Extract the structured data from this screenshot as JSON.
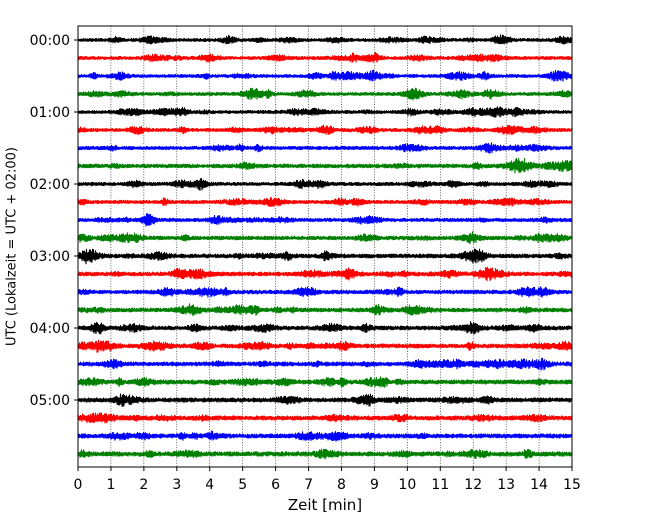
{
  "chart_data": {
    "type": "line",
    "title": "",
    "xlabel": "Zeit  [min]",
    "ylabel": "UTC (Lokalzeit = UTC + 02:00)",
    "xlim": [
      0,
      15
    ],
    "x_ticks": [
      "0",
      "1",
      "2",
      "3",
      "4",
      "5",
      "6",
      "7",
      "8",
      "9",
      "10",
      "11",
      "12",
      "13",
      "14",
      "15"
    ],
    "y_ticks": [
      "00:00",
      "01:00",
      "02:00",
      "03:00",
      "04:00",
      "05:00"
    ],
    "grid": "vertical dotted lines at each minute",
    "trace_interval_minutes": 15,
    "color_cycle": [
      "#000000",
      "#ff0000",
      "#0000ff",
      "#008000"
    ],
    "traces": [
      {
        "start": "00:00",
        "color": "#000000",
        "amplitude": 0.45
      },
      {
        "start": "00:15",
        "color": "#ff0000",
        "amplitude": 0.45
      },
      {
        "start": "00:30",
        "color": "#0000ff",
        "amplitude": 0.45
      },
      {
        "start": "00:45",
        "color": "#008000",
        "amplitude": 0.45
      },
      {
        "start": "01:00",
        "color": "#000000",
        "amplitude": 0.5
      },
      {
        "start": "01:15",
        "color": "#ff0000",
        "amplitude": 0.5
      },
      {
        "start": "01:30",
        "color": "#0000ff",
        "amplitude": 0.55
      },
      {
        "start": "01:45",
        "color": "#008000",
        "amplitude": 0.7
      },
      {
        "start": "02:00",
        "color": "#000000",
        "amplitude": 0.55
      },
      {
        "start": "02:15",
        "color": "#ff0000",
        "amplitude": 0.55
      },
      {
        "start": "02:30",
        "color": "#0000ff",
        "amplitude": 0.6
      },
      {
        "start": "02:45",
        "color": "#008000",
        "amplitude": 0.65
      },
      {
        "start": "03:00",
        "color": "#000000",
        "amplitude": 0.75
      },
      {
        "start": "03:15",
        "color": "#ff0000",
        "amplitude": 0.75
      },
      {
        "start": "03:30",
        "color": "#0000ff",
        "amplitude": 0.7
      },
      {
        "start": "03:45",
        "color": "#008000",
        "amplitude": 0.75
      },
      {
        "start": "04:00",
        "color": "#000000",
        "amplitude": 0.8
      },
      {
        "start": "04:15",
        "color": "#ff0000",
        "amplitude": 0.8
      },
      {
        "start": "04:30",
        "color": "#0000ff",
        "amplitude": 0.8
      },
      {
        "start": "04:45",
        "color": "#008000",
        "amplitude": 0.85
      },
      {
        "start": "05:00",
        "color": "#000000",
        "amplitude": 0.85
      },
      {
        "start": "05:15",
        "color": "#ff0000",
        "amplitude": 0.85
      },
      {
        "start": "05:30",
        "color": "#0000ff",
        "amplitude": 0.85
      },
      {
        "start": "05:45",
        "color": "#008000",
        "amplitude": 0.95
      }
    ]
  }
}
